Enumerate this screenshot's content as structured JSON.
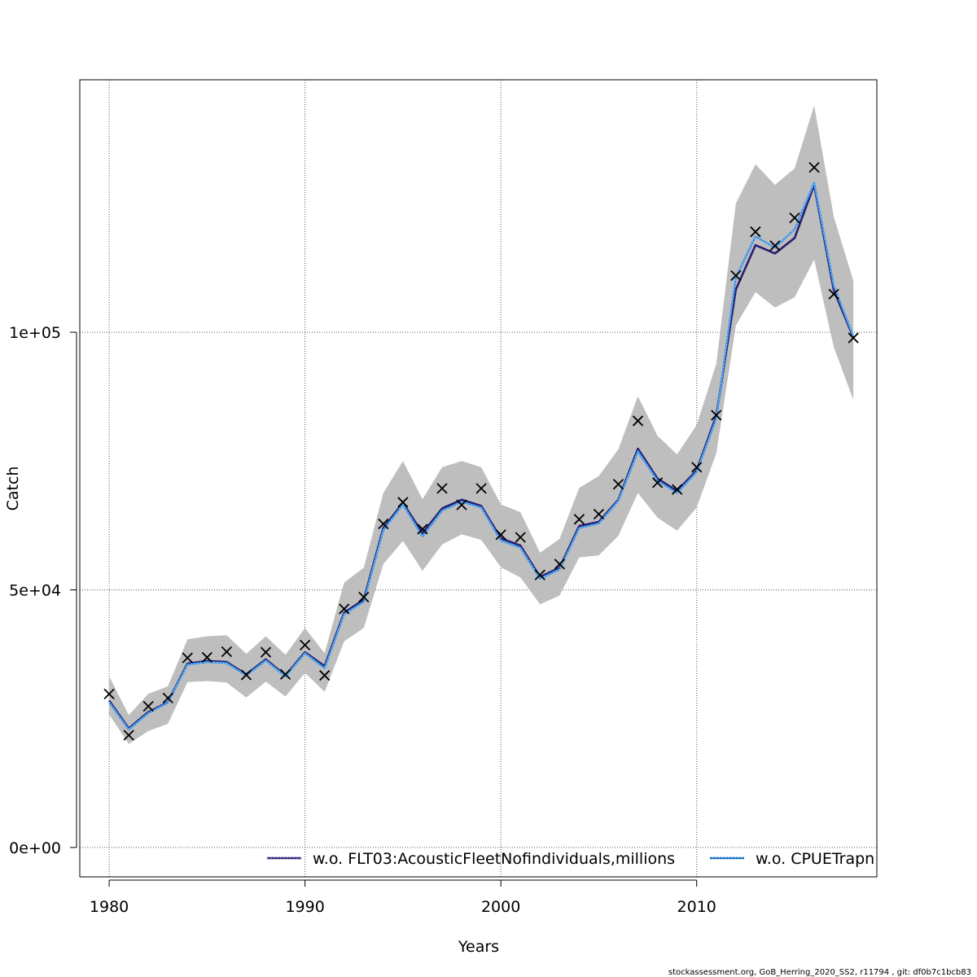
{
  "chart_data": {
    "type": "line",
    "xlabel": "Years",
    "ylabel": "Catch",
    "xlim": [
      1978.5,
      2019.2
    ],
    "ylim": [
      -5700,
      149000
    ],
    "x_ticks": [
      1980,
      1990,
      2000,
      2010
    ],
    "x_tick_labels": [
      "1980",
      "1990",
      "2000",
      "2010"
    ],
    "y_ticks": [
      0,
      50000,
      100000
    ],
    "y_tick_labels": [
      "0e+00",
      "5e+04",
      "1e+05"
    ],
    "grid": true,
    "legend_position": "bottom-right",
    "colors": {
      "band": "#bebebe",
      "series1": "#2a1d6e",
      "series2": "#2f8fe8",
      "series2_inner": "#9bd4ff",
      "observed": "#000000",
      "grid": "#555555"
    },
    "years": [
      1980,
      1981,
      1982,
      1983,
      1984,
      1985,
      1986,
      1987,
      1988,
      1989,
      1990,
      1991,
      1992,
      1993,
      1994,
      1995,
      1996,
      1997,
      1998,
      1999,
      2000,
      2001,
      2002,
      2003,
      2004,
      2005,
      2006,
      2007,
      2008,
      2009,
      2010,
      2011,
      2012,
      2013,
      2014,
      2015,
      2016,
      2017,
      2018
    ],
    "observed": [
      29800,
      21800,
      27400,
      29000,
      36800,
      36900,
      38000,
      33500,
      37900,
      33600,
      39300,
      33400,
      46300,
      48600,
      62800,
      67000,
      61800,
      69700,
      66500,
      69700,
      60700,
      60200,
      52900,
      55000,
      63700,
      64700,
      70500,
      82800,
      70800,
      69500,
      73800,
      83900,
      111000,
      119500,
      116800,
      122200,
      132000,
      107400,
      98900
    ],
    "band_upper": [
      33200,
      25700,
      29800,
      31300,
      40400,
      41000,
      41200,
      37600,
      41000,
      37400,
      42600,
      37700,
      51400,
      54300,
      68800,
      75000,
      67600,
      73800,
      75000,
      73800,
      66600,
      65100,
      57200,
      59900,
      69800,
      72100,
      77300,
      87600,
      79900,
      76300,
      82000,
      93900,
      125000,
      132600,
      128600,
      131800,
      144000,
      122400,
      110000
    ],
    "band_lower": [
      25800,
      20100,
      22600,
      24000,
      32100,
      32300,
      32000,
      29100,
      32200,
      29300,
      33900,
      30200,
      40000,
      42600,
      55000,
      59500,
      53700,
      58800,
      60800,
      59700,
      54400,
      52400,
      47200,
      48900,
      56300,
      56700,
      60500,
      68800,
      64000,
      61500,
      66000,
      76500,
      101300,
      107800,
      104800,
      106800,
      114100,
      97100,
      86900
    ],
    "series": [
      {
        "name": "w.o. FLT03:AcousticFleetNofindividuals,millions",
        "values": [
          28500,
          23100,
          26300,
          28200,
          35700,
          36200,
          36000,
          33600,
          36500,
          33400,
          37900,
          35200,
          45600,
          48100,
          62000,
          66900,
          61000,
          65800,
          67500,
          66300,
          60000,
          58600,
          52500,
          54300,
          62400,
          63200,
          67500,
          77400,
          71600,
          69200,
          73200,
          83800,
          108300,
          116900,
          115300,
          118300,
          128600,
          108200,
          99000
        ]
      },
      {
        "name": "w.o. CPUETrapn",
        "values": [
          28200,
          22900,
          26100,
          28100,
          35500,
          36000,
          35800,
          33400,
          36300,
          33200,
          37700,
          34800,
          45300,
          47700,
          61600,
          66600,
          60400,
          65400,
          67100,
          66000,
          59600,
          58200,
          52200,
          54000,
          62000,
          62900,
          67300,
          76900,
          71200,
          68800,
          72900,
          83300,
          110600,
          118600,
          116400,
          120000,
          129000,
          109000,
          99200
        ]
      }
    ]
  },
  "legend": {
    "items": [
      "w.o. FLT03:AcousticFleetNofindividuals,millions",
      "w.o. CPUETrapn"
    ]
  },
  "footer": {
    "text": "stockassessment.org, GoB_Herring_2020_SS2, r11794 , git: df0b7c1bcb83"
  }
}
